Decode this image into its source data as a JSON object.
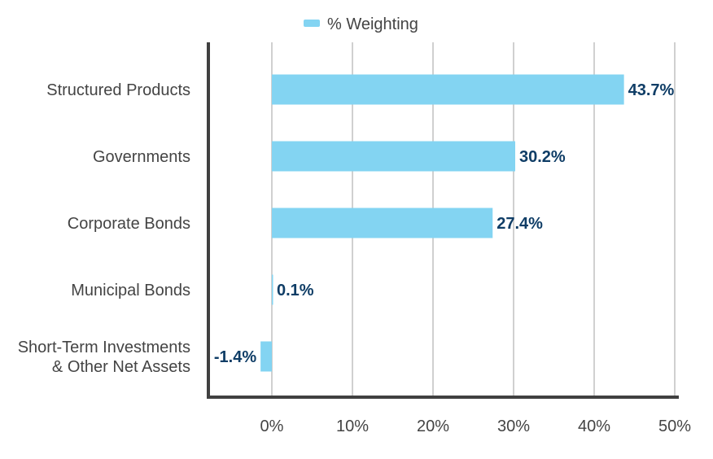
{
  "chart_data": {
    "type": "bar",
    "orientation": "horizontal",
    "categories": [
      [
        "Structured Products"
      ],
      [
        "Governments"
      ],
      [
        "Corporate Bonds"
      ],
      [
        "Municipal Bonds"
      ],
      [
        "Short-Term Investments",
        "& Other Net Assets"
      ]
    ],
    "series": [
      {
        "name": "% Weighting",
        "values": [
          43.7,
          30.2,
          27.4,
          0.1,
          -1.4
        ],
        "labels": [
          "43.7%",
          "30.2%",
          "27.4%",
          "0.1%",
          "-1.4%"
        ]
      }
    ],
    "xlim": [
      -8,
      50.5
    ],
    "xticks": [
      0,
      10,
      20,
      30,
      40,
      50
    ],
    "xtick_labels": [
      "0%",
      "10%",
      "20%",
      "30%",
      "40%",
      "50%"
    ],
    "grid": true,
    "legend_position": "top",
    "colors": {
      "bar": "#83d4f2",
      "data_label": "#0f3d66",
      "grid": "#d0d0d0",
      "axis": "#404040",
      "text": "#444444"
    }
  }
}
